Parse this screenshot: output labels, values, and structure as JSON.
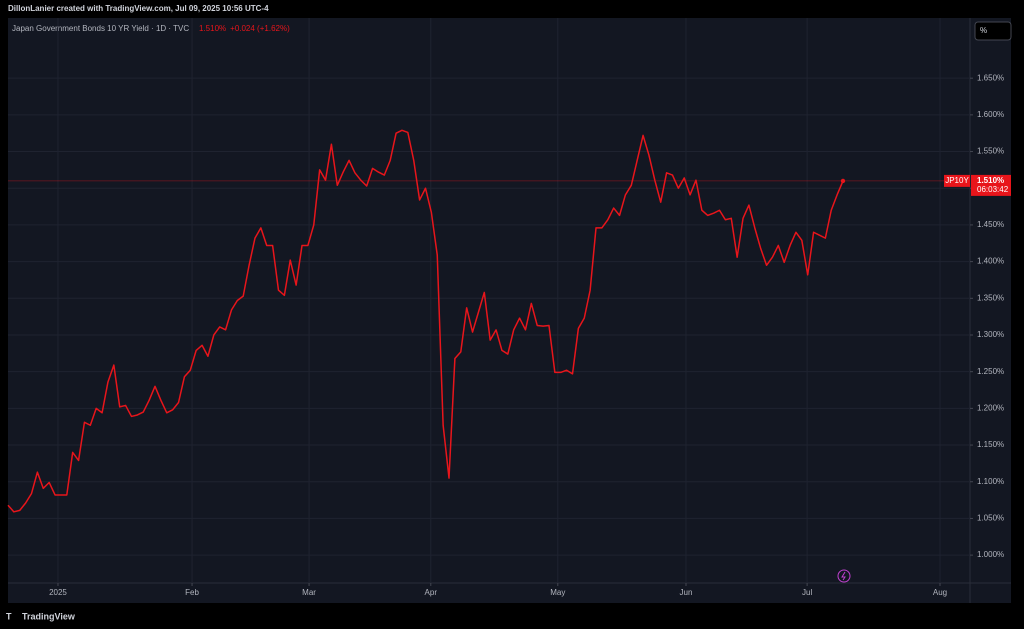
{
  "credit": "DillonLanier created with TradingView.com, Jul 09, 2025 10:56 UTC-4",
  "brand": "TradingView",
  "unit_button": "%",
  "chart_data": {
    "type": "line",
    "header": {
      "title": "Japan Government Bonds 10 YR Yield · 1D · TVC",
      "price": "1.510%",
      "change": "+0.024 (+1.62%)"
    },
    "color": "#e8151b",
    "values": [
      1.068,
      1.059,
      1.061,
      1.071,
      1.084,
      1.113,
      1.091,
      1.099,
      1.082,
      1.082,
      1.082,
      1.14,
      1.129,
      1.181,
      1.177,
      1.2,
      1.194,
      1.236,
      1.259,
      1.202,
      1.204,
      1.189,
      1.191,
      1.195,
      1.211,
      1.23,
      1.211,
      1.194,
      1.198,
      1.208,
      1.243,
      1.252,
      1.279,
      1.286,
      1.271,
      1.3,
      1.311,
      1.307,
      1.334,
      1.347,
      1.353,
      1.395,
      1.432,
      1.446,
      1.422,
      1.422,
      1.361,
      1.354,
      1.402,
      1.368,
      1.422,
      1.422,
      1.45,
      1.525,
      1.511,
      1.56,
      1.504,
      1.522,
      1.538,
      1.521,
      1.511,
      1.503,
      1.527,
      1.522,
      1.518,
      1.538,
      1.575,
      1.579,
      1.576,
      1.538,
      1.484,
      1.5,
      1.467,
      1.409,
      1.177,
      1.105,
      1.268,
      1.277,
      1.337,
      1.304,
      1.331,
      1.358,
      1.293,
      1.307,
      1.279,
      1.274,
      1.307,
      1.323,
      1.307,
      1.343,
      1.313,
      1.312,
      1.313,
      1.249,
      1.249,
      1.252,
      1.247,
      1.309,
      1.323,
      1.361,
      1.446,
      1.446,
      1.457,
      1.473,
      1.463,
      1.491,
      1.504,
      1.538,
      1.572,
      1.545,
      1.511,
      1.481,
      1.521,
      1.518,
      1.5,
      1.514,
      1.491,
      1.511,
      1.47,
      1.463,
      1.466,
      1.47,
      1.457,
      1.459,
      1.406,
      1.459,
      1.477,
      1.446,
      1.418,
      1.395,
      1.406,
      1.422,
      1.399,
      1.422,
      1.44,
      1.429,
      1.382,
      1.44,
      1.436,
      1.432,
      1.47,
      1.491,
      1.51
    ],
    "last_price": {
      "label": "JP10Y",
      "value_label": "1.510%",
      "countdown": "06:03:42"
    },
    "xlim": [
      0,
      163.6
    ],
    "xticks": [
      {
        "value": 8.5,
        "label": "2025"
      },
      {
        "value": 31.3,
        "label": "Feb"
      },
      {
        "value": 51.2,
        "label": "Mar"
      },
      {
        "value": 71.9,
        "label": "Apr"
      },
      {
        "value": 93.5,
        "label": "May"
      },
      {
        "value": 115.3,
        "label": "Jun"
      },
      {
        "value": 135.9,
        "label": "Jul"
      },
      {
        "value": 158.5,
        "label": "Aug"
      }
    ],
    "ylim": [
      0.962,
      1.732
    ],
    "yticks": [
      {
        "value": 1.0,
        "label": "1.000%"
      },
      {
        "value": 1.05,
        "label": "1.050%"
      },
      {
        "value": 1.1,
        "label": "1.100%"
      },
      {
        "value": 1.15,
        "label": "1.150%"
      },
      {
        "value": 1.2,
        "label": "1.200%"
      },
      {
        "value": 1.25,
        "label": "1.250%"
      },
      {
        "value": 1.3,
        "label": "1.300%"
      },
      {
        "value": 1.35,
        "label": "1.350%"
      },
      {
        "value": 1.4,
        "label": "1.400%"
      },
      {
        "value": 1.45,
        "label": "1.450%"
      },
      {
        "value": 1.5,
        "label": "1.500%"
      },
      {
        "value": 1.55,
        "label": "1.550%"
      },
      {
        "value": 1.6,
        "label": "1.600%"
      },
      {
        "value": 1.65,
        "label": "1.650%"
      }
    ],
    "grid": true
  }
}
